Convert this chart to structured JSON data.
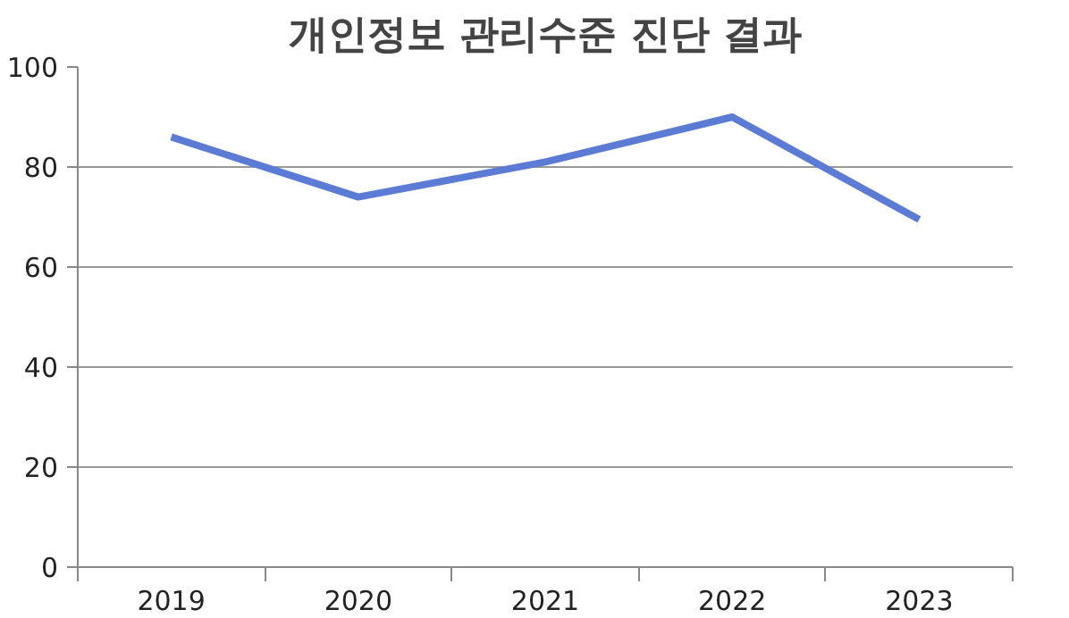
{
  "chart_data": {
    "type": "line",
    "title": "개인정보 관리수준 진단 결과",
    "categories": [
      "2019",
      "2020",
      "2021",
      "2022",
      "2023"
    ],
    "series": [
      {
        "color": "#5b7bd5",
        "values": [
          86,
          74,
          81,
          90,
          69.5
        ]
      }
    ],
    "ylim": [
      0,
      100
    ],
    "yticks": [
      0,
      20,
      40,
      60,
      80,
      100
    ],
    "grid": "y",
    "marker": "none",
    "line_style": "solid"
  }
}
